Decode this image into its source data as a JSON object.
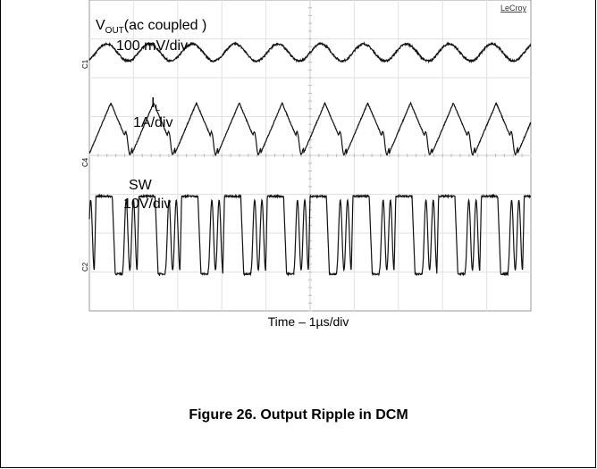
{
  "chart_data": {
    "type": "line",
    "title": "",
    "xlabel": "Time – 1µs/div",
    "brand": "LeCroy",
    "grid": true,
    "divisions": {
      "x": 10,
      "y": 8
    },
    "time_per_div_us": 1,
    "series": [
      {
        "name": "VOUT",
        "label_main": "V",
        "label_sub": "OUT",
        "label_rest": "(ac coupled )",
        "scale": "100 mV/div",
        "ground_marker": "C1",
        "period_us": 0.97,
        "phase_us": 0.15,
        "amplitude_div": 0.22,
        "offset_div": 6.65,
        "shape": "sine"
      },
      {
        "name": "IL",
        "label_main": "I",
        "label_sub": "L",
        "scale": "1A/div",
        "ground_marker": "C4",
        "period_us": 0.97,
        "phase_us": 0.0,
        "peak_div": 5.35,
        "valley_div": 4.05,
        "shape": "triangle"
      },
      {
        "name": "SW",
        "label_main": "SW",
        "scale": "10V/div",
        "ground_marker": "C2",
        "period_us": 0.97,
        "phase_us": 0.15,
        "high_div": 2.95,
        "low_div": 0.95,
        "shape": "switching"
      }
    ]
  },
  "caption": "Figure 26. Output Ripple in DCM"
}
